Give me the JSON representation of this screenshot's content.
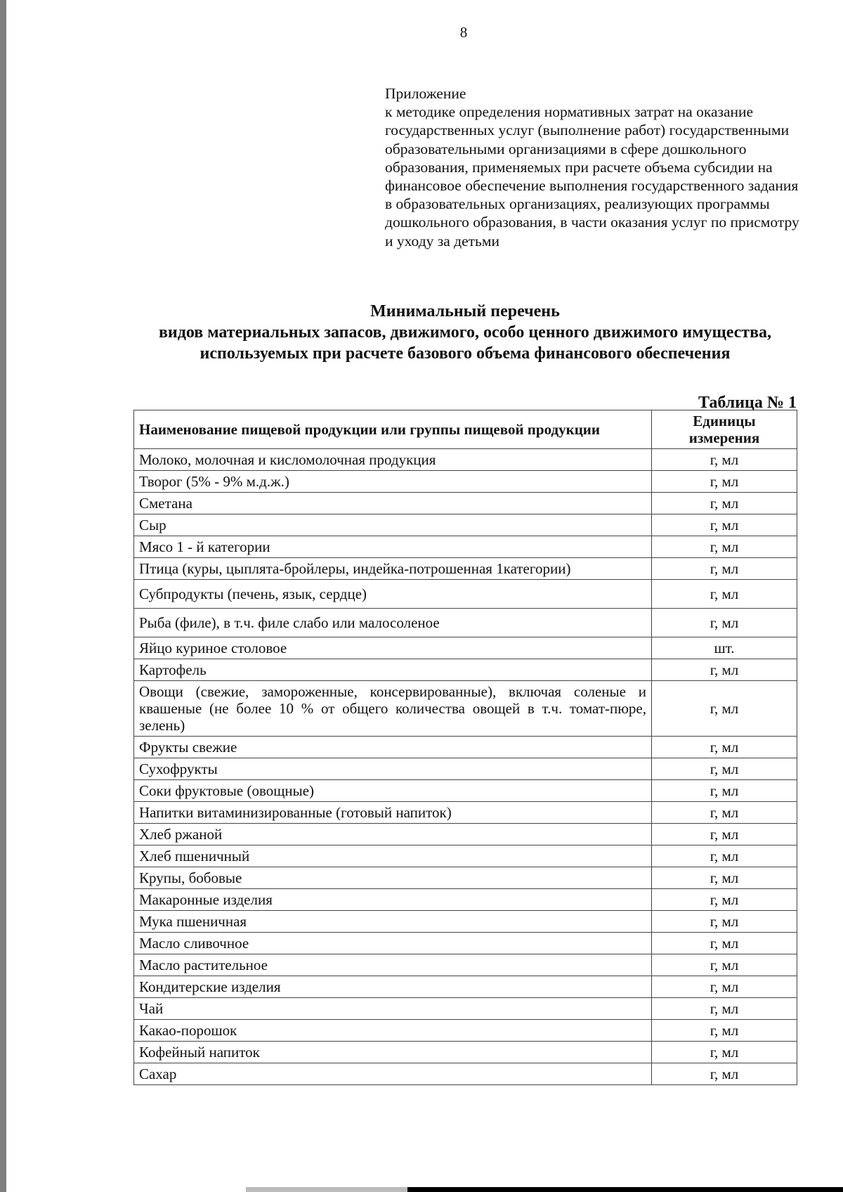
{
  "page_number": "8",
  "appendix": {
    "heading": "Приложение",
    "text": "к методике определения нормативных затрат на оказание государственных услуг (выполнение работ) государственными образовательными организациями в сфере дошкольного образования, применяемых при расчете объема субсидии на финансовое обеспечение выполнения государственного задания в образовательных организациях, реализующих программы дошкольного образования, в части оказания услуг по присмотру и уходу за детьми"
  },
  "title": {
    "line1": "Минимальный перечень",
    "line2": "видов материальных запасов, движимого, особо ценного движимого имущества, используемых при расчете базового объема финансового обеспечения"
  },
  "table_number": "Таблица № 1",
  "table": {
    "headers": [
      "Наименование пищевой продукции или группы пищевой продукции",
      "Единицы измерения"
    ],
    "rows": [
      {
        "name": "Молоко, молочная  и кисломолочная продукция",
        "unit": "г, мл"
      },
      {
        "name": "Творог (5% - 9% м.д.ж.)",
        "unit": "г, мл"
      },
      {
        "name": "Сметана",
        "unit": "г, мл"
      },
      {
        "name": "Сыр",
        "unit": "г, мл"
      },
      {
        "name": "Мясо 1 - й категории",
        "unit": "г, мл"
      },
      {
        "name": "Птица (куры, цыплята-бройлеры, индейка-потрошенная 1категории)",
        "unit": "г, мл"
      },
      {
        "name": "Субпродукты (печень, язык, сердце)",
        "unit": "г, мл",
        "tall": true
      },
      {
        "name": "Рыба (филе), в т.ч. филе слабо или малосоленое",
        "unit": "г, мл",
        "tall": true
      },
      {
        "name": "Яйцо куриное столовое",
        "unit": "шт."
      },
      {
        "name": "Картофель",
        "unit": "г, мл"
      },
      {
        "name": "Овощи (свежие, замороженные, консервированные), включая соленые и квашеные (не более 10 % от общего количества овощей в т.ч. томат-пюре, зелень)",
        "unit": "г, мл"
      },
      {
        "name": "Фрукты свежие",
        "unit": "г, мл"
      },
      {
        "name": "Сухофрукты",
        "unit": "г, мл"
      },
      {
        "name": "Соки фруктовые (овощные)",
        "unit": "г, мл"
      },
      {
        "name": "Напитки витаминизированные (готовый напиток)",
        "unit": "г, мл"
      },
      {
        "name": "Хлеб ржаной",
        "unit": "г, мл"
      },
      {
        "name": "Хлеб пшеничный",
        "unit": "г, мл"
      },
      {
        "name": "Крупы, бобовые",
        "unit": "г, мл"
      },
      {
        "name": "Макаронные изделия",
        "unit": "г, мл"
      },
      {
        "name": "Мука пшеничная",
        "unit": "г, мл"
      },
      {
        "name": "Масло сливочное",
        "unit": "г, мл"
      },
      {
        "name": "Масло растительное",
        "unit": "г, мл"
      },
      {
        "name": "Кондитерские изделия",
        "unit": "г, мл"
      },
      {
        "name": "Чай",
        "unit": "г, мл"
      },
      {
        "name": "Какао-порошок",
        "unit": "г, мл"
      },
      {
        "name": "Кофейный напиток",
        "unit": "г, мл"
      },
      {
        "name": "Сахар",
        "unit": "г, мл"
      }
    ]
  }
}
